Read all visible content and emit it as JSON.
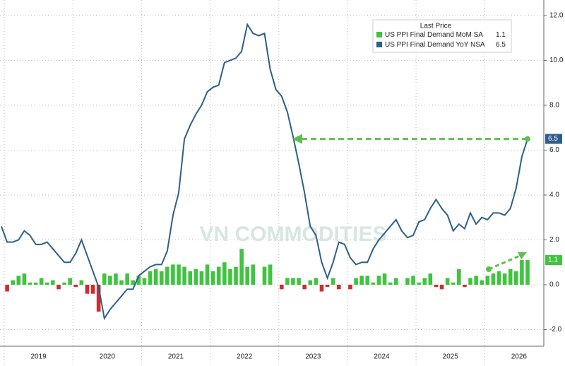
{
  "chart_data": {
    "type": "combo",
    "legend_title": "Last Price",
    "watermark": "VN COMMODITIES",
    "categories": [
      null,
      null,
      null,
      null,
      null,
      null,
      null,
      "2019",
      null,
      null,
      null,
      null,
      null,
      null,
      null,
      null,
      null,
      null,
      null,
      "2020",
      null,
      null,
      null,
      null,
      null,
      null,
      null,
      null,
      null,
      null,
      null,
      "2021",
      null,
      null,
      null,
      null,
      null,
      null,
      null,
      null,
      null,
      null,
      null,
      "2022",
      null,
      null,
      null,
      null,
      null,
      null,
      null,
      null,
      null,
      null,
      null,
      "2023",
      null,
      null,
      null,
      null,
      null,
      null,
      null,
      null,
      null,
      null,
      null,
      "2024",
      null,
      null,
      null,
      null,
      null,
      null,
      null,
      null,
      null,
      null,
      null,
      "2025",
      null,
      null,
      null,
      null,
      null,
      null,
      null,
      null,
      null,
      null,
      null,
      "2026",
      null
    ],
    "series": [
      {
        "name": "US PPI Final Demand MoM SA",
        "type": "bar",
        "color": "#3fc43f",
        "negative_color": "#d42a2a",
        "values": [
          0.0,
          -0.3,
          0.2,
          0.4,
          0.5,
          0.1,
          0.1,
          0.3,
          0.1,
          0.2,
          -0.2,
          0.1,
          0.3,
          -0.1,
          0.2,
          -0.4,
          -0.4,
          -1.2,
          0.5,
          0.4,
          0.5,
          0.2,
          0.5,
          0.2,
          0.4,
          0.3,
          0.6,
          0.7,
          0.6,
          0.8,
          0.9,
          0.9,
          0.8,
          0.6,
          0.7,
          0.6,
          0.9,
          0.6,
          0.8,
          1.0,
          0.7,
          0.8,
          1.6,
          0.8,
          0.9,
          0.0,
          0.8,
          0.9,
          0.0,
          -0.2,
          0.3,
          0.3,
          0.3,
          -0.2,
          0.2,
          0.3,
          -0.3,
          -0.1,
          0.3,
          -0.2,
          0.0,
          -0.2,
          0.3,
          0.4,
          0.4,
          0.1,
          0.4,
          0.5,
          0.1,
          0.3,
          0.0,
          0.3,
          0.4,
          0.1,
          0.3,
          0.5,
          -0.1,
          -0.2,
          0.3,
          0.1,
          0.7,
          -0.1,
          0.3,
          0.4,
          0.2,
          0.4,
          0.5,
          0.6,
          0.5,
          0.7,
          0.6,
          1.1,
          1.1
        ]
      },
      {
        "name": "US PPI Final Demand YoY NSA",
        "type": "line",
        "color": "#2e5f8a",
        "values": [
          2.6,
          1.9,
          1.9,
          2.0,
          2.4,
          2.2,
          1.8,
          1.8,
          1.9,
          1.6,
          1.3,
          1.0,
          1.0,
          1.4,
          2.0,
          1.3,
          0.6,
          -0.1,
          -1.5,
          -1.1,
          -0.8,
          -0.5,
          -0.2,
          -0.2,
          0.4,
          0.6,
          0.8,
          0.9,
          0.9,
          1.5,
          3.1,
          4.1,
          6.5,
          7.1,
          7.6,
          8.0,
          8.6,
          8.8,
          8.9,
          9.9,
          10.0,
          10.1,
          10.4,
          11.6,
          11.2,
          11.1,
          11.2,
          9.6,
          8.7,
          8.4,
          7.7,
          6.6,
          5.4,
          4.1,
          2.6,
          2.2,
          1.0,
          0.3,
          1.0,
          1.9,
          1.8,
          1.2,
          0.9,
          1.0,
          1.0,
          1.6,
          2.0,
          2.3,
          2.6,
          2.9,
          2.4,
          2.1,
          2.2,
          2.8,
          2.9,
          3.4,
          3.8,
          3.4,
          3.1,
          2.4,
          2.7,
          2.5,
          3.2,
          2.7,
          3.0,
          2.9,
          3.2,
          3.2,
          3.1,
          3.4,
          4.3,
          5.7,
          6.5
        ]
      }
    ],
    "ylim": [
      -2.74,
      12.69
    ],
    "yticks": [
      {
        "value": -2,
        "label": "-2.0"
      },
      {
        "value": 0,
        "label": "0.0"
      },
      {
        "value": 2,
        "label": "2.0"
      },
      {
        "value": 4,
        "label": "4.0"
      },
      {
        "value": 6,
        "label": "6.0"
      },
      {
        "value": 8,
        "label": "8.0"
      },
      {
        "value": 10,
        "label": "10.0"
      },
      {
        "value": 12,
        "label": "12.0"
      }
    ],
    "grid": true
  }
}
